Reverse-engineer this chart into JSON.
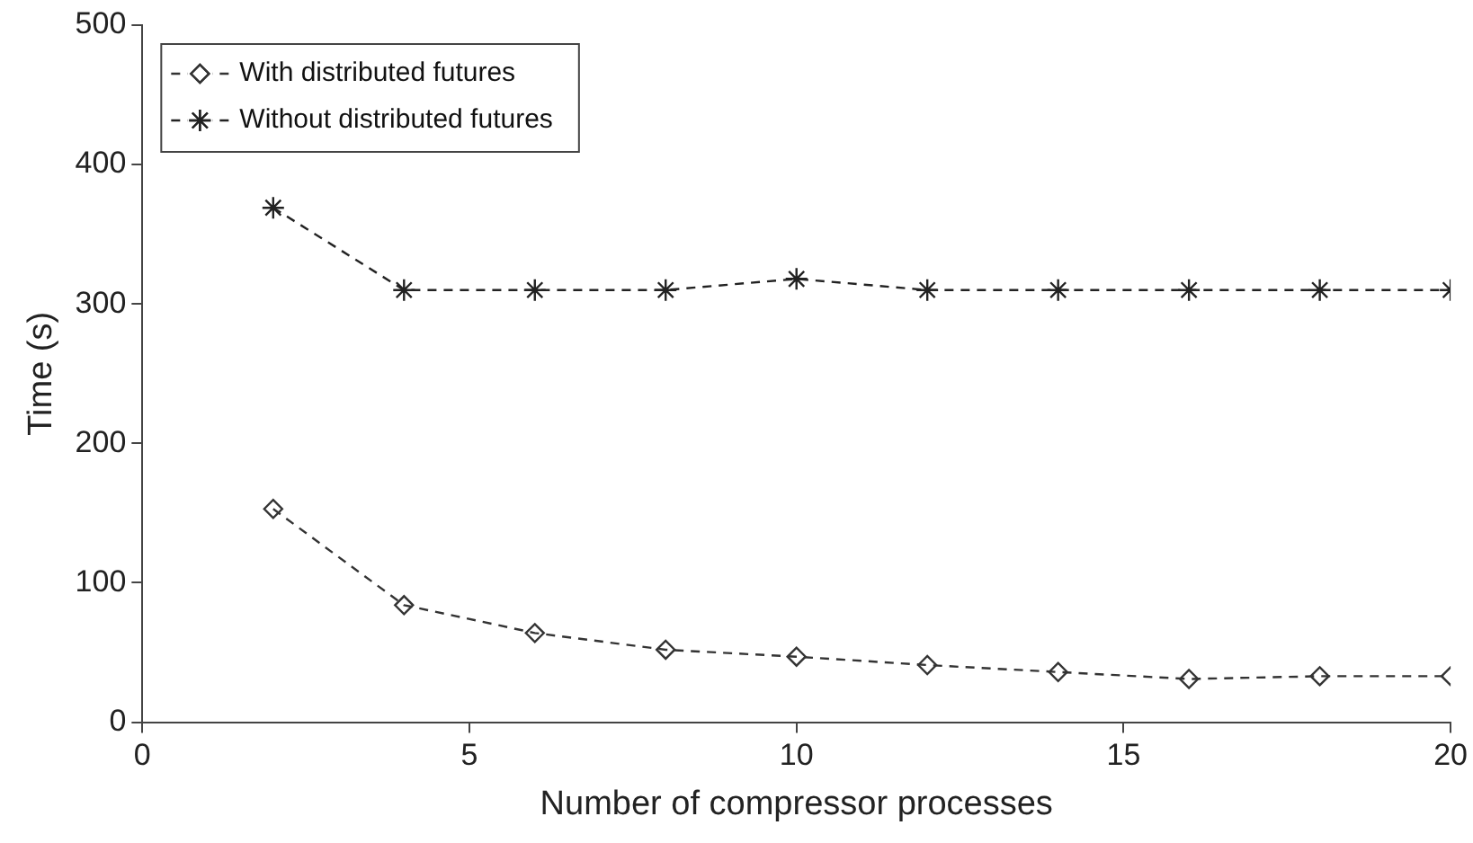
{
  "chart_data": {
    "type": "line",
    "xlabel": "Number of compressor processes",
    "ylabel": "Time (s)",
    "x": [
      2,
      4,
      6,
      8,
      10,
      12,
      14,
      16,
      18,
      20
    ],
    "series": [
      {
        "name": "With distributed futures",
        "color": "#333333",
        "marker": "diamond",
        "values": [
          153,
          84,
          64,
          52,
          47,
          41,
          36,
          31,
          33,
          33
        ]
      },
      {
        "name": "Without distributed futures",
        "color": "#222222",
        "marker": "cross",
        "values": [
          369,
          310,
          310,
          310,
          318,
          310,
          310,
          310,
          310,
          310
        ]
      }
    ],
    "xlim": [
      0,
      20
    ],
    "xticks": [
      0,
      5,
      10,
      15,
      20
    ],
    "ylim": [
      0,
      500
    ],
    "yticks": [
      0,
      100,
      200,
      300,
      400,
      500
    ],
    "grid": false,
    "legend": "top left",
    "line_style": "dashed"
  }
}
